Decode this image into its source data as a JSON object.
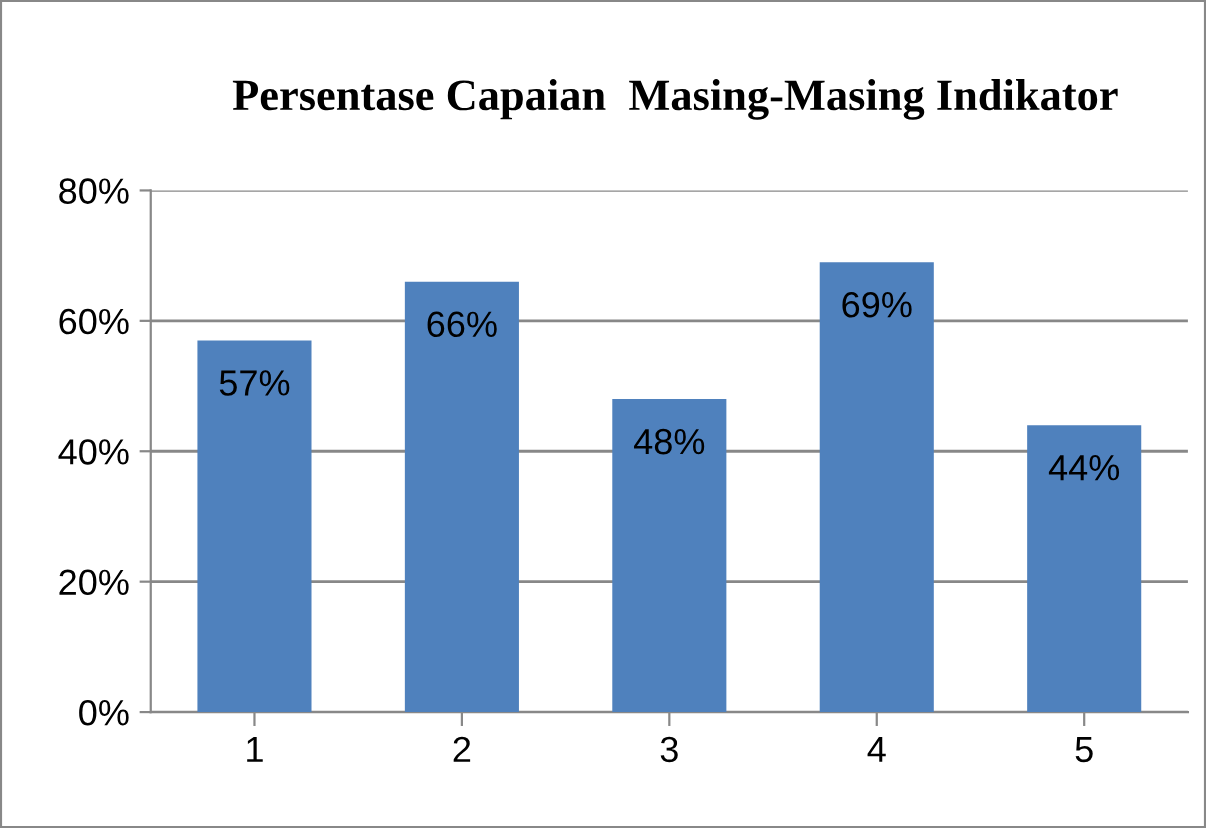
{
  "chart_data": {
    "type": "bar",
    "title": "Persentase Capaian  Masing-Masing Indikator",
    "categories": [
      "1",
      "2",
      "3",
      "4",
      "5"
    ],
    "values": [
      57,
      66,
      48,
      69,
      44
    ],
    "value_labels": [
      "57%",
      "66%",
      "48%",
      "69%",
      "44%"
    ],
    "color": "#4f81bd",
    "ylim": [
      0,
      80
    ],
    "yticks": [
      {
        "value": 0,
        "label": "0%"
      },
      {
        "value": 20,
        "label": "20%"
      },
      {
        "value": 40,
        "label": "40%"
      },
      {
        "value": 60,
        "label": "60%"
      },
      {
        "value": 80,
        "label": "80%"
      }
    ],
    "grid": "y"
  }
}
